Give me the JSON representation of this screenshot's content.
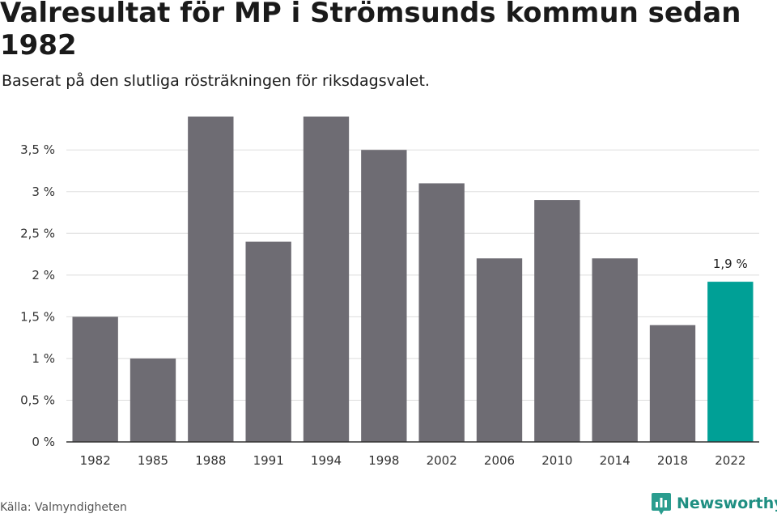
{
  "header": {
    "title": "Valresultat för MP i Strömsunds kommun sedan 1982",
    "subtitle": "Baserat på den slutliga rösträkningen för riksdagsvalet."
  },
  "footer": {
    "source": "Källa: Valmyndigheten",
    "brand": "Newsworthy",
    "brand_icon": "newsworthy-logo-icon"
  },
  "colors": {
    "bar": "#6e6c73",
    "highlight": "#00a096",
    "grid": "#dddddd",
    "axis": "#333333"
  },
  "chart_data": {
    "type": "bar",
    "title": "Valresultat för MP i Strömsunds kommun sedan 1982",
    "subtitle": "Baserat på den slutliga rösträkningen för riksdagsvalet.",
    "xlabel": "",
    "ylabel": "",
    "categories": [
      "1982",
      "1985",
      "1988",
      "1991",
      "1994",
      "1998",
      "2002",
      "2006",
      "2010",
      "2014",
      "2018",
      "2022"
    ],
    "values": [
      1.5,
      1.0,
      3.9,
      2.4,
      3.9,
      3.5,
      3.1,
      2.2,
      2.9,
      2.2,
      1.4,
      1.92
    ],
    "ylim": [
      0,
      3.9
    ],
    "yticks": [
      0,
      0.5,
      1,
      1.5,
      2,
      2.5,
      3,
      3.5
    ],
    "ytick_labels": [
      "0 %",
      "0,5 %",
      "1 %",
      "1,5 %",
      "2 %",
      "2,5 %",
      "3 %",
      "3,5 %"
    ],
    "highlight_index": 11,
    "highlight_label": "1,9 %",
    "grid": true,
    "legend": "none"
  }
}
